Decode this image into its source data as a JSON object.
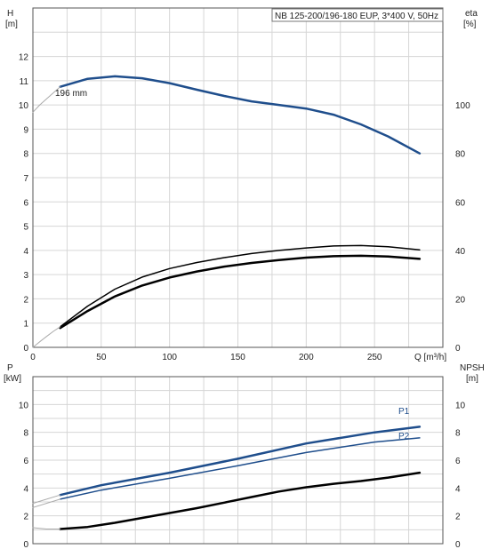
{
  "chart_data": [
    {
      "type": "line",
      "title": "NB 125-200/196-180 EUP, 3*400 V, 50Hz",
      "ylabel_left": "H",
      "ylabel_left_unit": "[m]",
      "ylabel_right": "eta",
      "ylabel_right_unit": "[%]",
      "xlabel": "Q [m³/h]",
      "xlim": [
        0,
        300
      ],
      "ylim_left": [
        0,
        14
      ],
      "ylim_right": [
        0,
        140
      ],
      "xticks": [
        "0",
        "50",
        "100",
        "150",
        "200",
        "250"
      ],
      "yticks_left": [
        "0",
        "1",
        "2",
        "3",
        "4",
        "5",
        "6",
        "7",
        "8",
        "9",
        "10",
        "11",
        "12"
      ],
      "yticks_right": [
        "0",
        "20",
        "40",
        "60",
        "80",
        "100"
      ],
      "annotation": "196 mm",
      "grid": true,
      "series": [
        {
          "name": "H",
          "axis": "left",
          "color": "#1f4e8c",
          "x": [
            20,
            40,
            60,
            80,
            100,
            120,
            140,
            160,
            180,
            200,
            220,
            240,
            260,
            283
          ],
          "values": [
            10.75,
            11.08,
            11.18,
            11.1,
            10.9,
            10.63,
            10.37,
            10.15,
            10.0,
            9.85,
            9.6,
            9.2,
            8.7,
            8.0
          ]
        },
        {
          "name": "H (extrapolated)",
          "axis": "left",
          "color": "#aaaaaa",
          "x": [
            0,
            5,
            10,
            15,
            20
          ],
          "values": [
            9.7,
            10.0,
            10.25,
            10.5,
            10.75
          ]
        },
        {
          "name": "eta",
          "axis": "right",
          "color": "#000000",
          "x": [
            20,
            40,
            60,
            80,
            100,
            120,
            140,
            160,
            180,
            200,
            220,
            240,
            260,
            283
          ],
          "values": [
            8.5,
            17.0,
            24.0,
            29.0,
            32.5,
            35.0,
            37.0,
            38.7,
            40.0,
            41.0,
            41.8,
            42.0,
            41.5,
            40.2
          ]
        },
        {
          "name": "eta (thick)",
          "axis": "right",
          "color": "#000000",
          "x": [
            20,
            40,
            60,
            80,
            100,
            120,
            140,
            160,
            180,
            200,
            220,
            240,
            260,
            283
          ],
          "values": [
            8.0,
            15.0,
            21.0,
            25.5,
            28.8,
            31.3,
            33.3,
            34.8,
            36.0,
            37.0,
            37.6,
            37.8,
            37.5,
            36.5
          ]
        },
        {
          "name": "eta (extrapolated)",
          "axis": "right",
          "color": "#aaaaaa",
          "x": [
            0,
            5,
            10,
            15,
            20
          ],
          "values": [
            0,
            2.3,
            4.5,
            6.6,
            8.5
          ]
        }
      ]
    },
    {
      "type": "line",
      "ylabel_left": "P",
      "ylabel_left_unit": "[kW]",
      "ylabel_right": "NPSH",
      "ylabel_right_unit": "[m]",
      "xlim": [
        0,
        300
      ],
      "ylim_left": [
        0,
        12
      ],
      "ylim_right": [
        0,
        12
      ],
      "yticks_left": [
        "0",
        "2",
        "4",
        "6",
        "8",
        "10"
      ],
      "yticks_right": [
        "0",
        "2",
        "4",
        "6",
        "8",
        "10"
      ],
      "grid": true,
      "series": [
        {
          "name": "P1",
          "axis": "left",
          "color": "#1f4e8c",
          "x": [
            20,
            50,
            100,
            150,
            200,
            250,
            283
          ],
          "values": [
            3.5,
            4.2,
            5.1,
            6.1,
            7.2,
            8.0,
            8.4
          ]
        },
        {
          "name": "P1 (extrapolated)",
          "axis": "left",
          "color": "#aaaaaa",
          "x": [
            0,
            20
          ],
          "values": [
            2.9,
            3.5
          ]
        },
        {
          "name": "P2",
          "axis": "left",
          "color": "#1f4e8c",
          "x": [
            20,
            50,
            100,
            150,
            200,
            250,
            283
          ],
          "values": [
            3.2,
            3.85,
            4.7,
            5.6,
            6.55,
            7.3,
            7.6
          ]
        },
        {
          "name": "P2 (extrapolated)",
          "axis": "left",
          "color": "#aaaaaa",
          "x": [
            0,
            20
          ],
          "values": [
            2.6,
            3.2
          ]
        },
        {
          "name": "NPSH",
          "axis": "right",
          "color": "#000000",
          "x": [
            20,
            40,
            60,
            80,
            100,
            120,
            140,
            160,
            180,
            200,
            220,
            240,
            260,
            283
          ],
          "values": [
            1.05,
            1.2,
            1.5,
            1.85,
            2.2,
            2.55,
            2.95,
            3.35,
            3.75,
            4.05,
            4.3,
            4.5,
            4.75,
            5.1
          ]
        },
        {
          "name": "NPSH (extrapolated)",
          "axis": "right",
          "color": "#aaaaaa",
          "x": [
            0,
            10,
            20
          ],
          "values": [
            1.15,
            1.05,
            1.05
          ]
        }
      ]
    }
  ]
}
